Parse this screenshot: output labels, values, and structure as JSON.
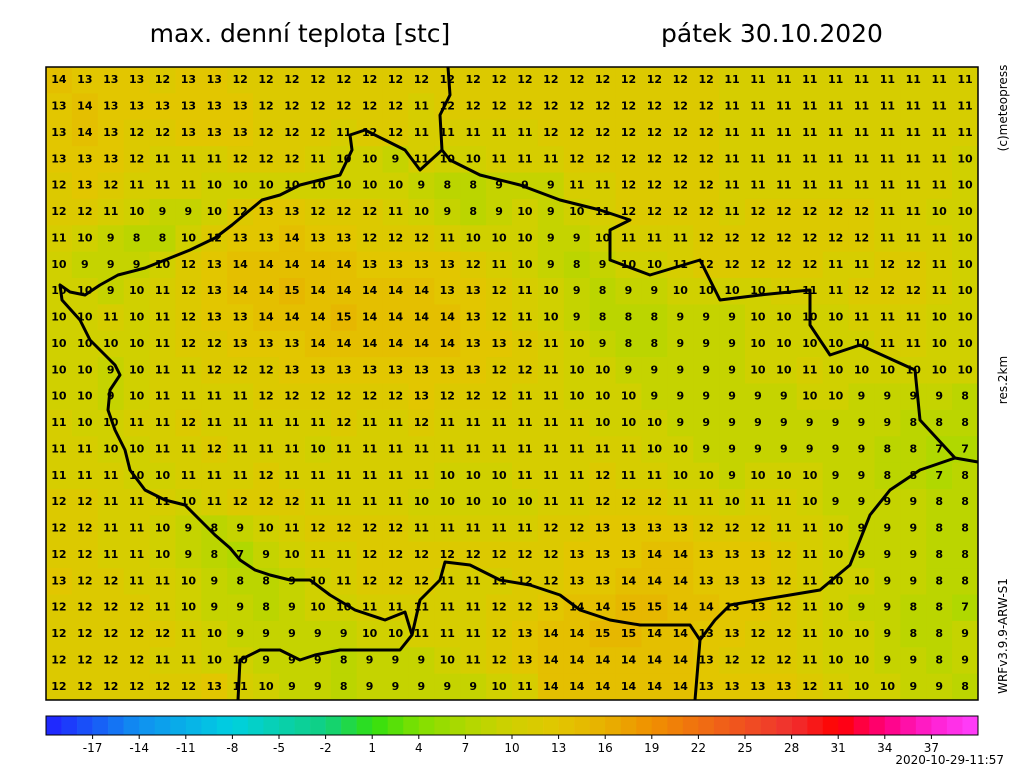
{
  "title_left": "max. denní teplota [stc]",
  "title_right": "pátek 30.10.2020",
  "credit": "(c)meteopress",
  "resolution": "res.2km",
  "model": "WRFv3.9.9-ARW-S1",
  "timestamp": "2020-10-29-11:57",
  "map": {
    "rows": [
      [
        14,
        13,
        13,
        13,
        12,
        13,
        13,
        12,
        12,
        12,
        12,
        12,
        12,
        12,
        12,
        12,
        12,
        12,
        12,
        12,
        12,
        12,
        12,
        12,
        12,
        12,
        11,
        11,
        11,
        11,
        11,
        11,
        11,
        11,
        11,
        11
      ],
      [
        13,
        14,
        13,
        13,
        13,
        13,
        13,
        13,
        12,
        12,
        12,
        12,
        12,
        12,
        11,
        12,
        12,
        12,
        12,
        12,
        12,
        12,
        12,
        12,
        12,
        12,
        11,
        11,
        11,
        11,
        11,
        11,
        11,
        11,
        11,
        11
      ],
      [
        13,
        14,
        13,
        12,
        12,
        13,
        13,
        13,
        12,
        12,
        12,
        11,
        12,
        12,
        11,
        11,
        11,
        11,
        11,
        12,
        12,
        12,
        12,
        12,
        12,
        12,
        11,
        11,
        11,
        11,
        11,
        11,
        11,
        11,
        11,
        11
      ],
      [
        13,
        13,
        13,
        12,
        11,
        11,
        11,
        12,
        12,
        12,
        11,
        10,
        10,
        9,
        11,
        10,
        10,
        11,
        11,
        11,
        12,
        12,
        12,
        12,
        12,
        12,
        11,
        11,
        11,
        11,
        11,
        11,
        11,
        11,
        11,
        10
      ],
      [
        12,
        13,
        12,
        11,
        11,
        11,
        10,
        10,
        10,
        10,
        10,
        10,
        10,
        10,
        9,
        8,
        8,
        9,
        9,
        9,
        11,
        11,
        12,
        12,
        12,
        12,
        11,
        11,
        11,
        11,
        11,
        11,
        11,
        11,
        11,
        10
      ],
      [
        12,
        12,
        11,
        10,
        9,
        9,
        10,
        12,
        13,
        13,
        12,
        12,
        12,
        11,
        10,
        9,
        8,
        9,
        10,
        9,
        10,
        11,
        12,
        12,
        12,
        12,
        11,
        12,
        12,
        12,
        12,
        12,
        11,
        11,
        10,
        10
      ],
      [
        11,
        10,
        9,
        8,
        8,
        10,
        12,
        13,
        13,
        14,
        13,
        13,
        12,
        12,
        12,
        11,
        10,
        10,
        10,
        9,
        9,
        10,
        11,
        11,
        11,
        12,
        12,
        12,
        12,
        12,
        12,
        12,
        11,
        11,
        11,
        10
      ],
      [
        10,
        9,
        9,
        9,
        10,
        12,
        13,
        14,
        14,
        14,
        14,
        14,
        13,
        13,
        13,
        13,
        12,
        11,
        10,
        9,
        8,
        9,
        10,
        10,
        11,
        12,
        12,
        12,
        12,
        12,
        11,
        11,
        12,
        12,
        11,
        10
      ],
      [
        10,
        10,
        9,
        10,
        11,
        12,
        13,
        14,
        14,
        15,
        14,
        14,
        14,
        14,
        14,
        13,
        13,
        12,
        11,
        10,
        9,
        8,
        9,
        9,
        10,
        10,
        10,
        10,
        11,
        11,
        11,
        12,
        12,
        12,
        11,
        10
      ],
      [
        10,
        10,
        11,
        10,
        11,
        12,
        13,
        13,
        14,
        14,
        14,
        15,
        14,
        14,
        14,
        14,
        13,
        12,
        11,
        10,
        9,
        8,
        8,
        8,
        9,
        9,
        9,
        10,
        10,
        10,
        10,
        11,
        11,
        11,
        10,
        10
      ],
      [
        10,
        10,
        10,
        10,
        11,
        12,
        12,
        13,
        13,
        13,
        14,
        14,
        14,
        14,
        14,
        14,
        13,
        13,
        12,
        11,
        10,
        9,
        8,
        8,
        9,
        9,
        9,
        10,
        10,
        10,
        10,
        10,
        11,
        11,
        10,
        10
      ],
      [
        10,
        10,
        9,
        10,
        11,
        11,
        12,
        12,
        12,
        13,
        13,
        13,
        13,
        13,
        13,
        13,
        13,
        12,
        12,
        11,
        10,
        10,
        9,
        9,
        9,
        9,
        9,
        10,
        10,
        11,
        10,
        10,
        10,
        10,
        10,
        10
      ],
      [
        10,
        10,
        9,
        10,
        11,
        11,
        11,
        11,
        12,
        12,
        12,
        12,
        12,
        12,
        13,
        12,
        12,
        12,
        11,
        11,
        10,
        10,
        10,
        9,
        9,
        9,
        9,
        9,
        9,
        10,
        10,
        9,
        9,
        9,
        9,
        8
      ],
      [
        11,
        10,
        10,
        11,
        11,
        12,
        11,
        11,
        11,
        11,
        11,
        12,
        11,
        11,
        12,
        11,
        11,
        11,
        11,
        11,
        11,
        10,
        10,
        10,
        9,
        9,
        9,
        9,
        9,
        9,
        9,
        9,
        9,
        8,
        8,
        8
      ],
      [
        11,
        11,
        10,
        10,
        11,
        11,
        12,
        11,
        11,
        11,
        10,
        11,
        11,
        11,
        11,
        11,
        11,
        11,
        11,
        11,
        11,
        11,
        11,
        10,
        10,
        9,
        9,
        9,
        9,
        9,
        9,
        9,
        8,
        8,
        7,
        7
      ],
      [
        11,
        11,
        11,
        10,
        10,
        11,
        11,
        11,
        12,
        11,
        11,
        11,
        11,
        11,
        11,
        10,
        10,
        10,
        11,
        11,
        11,
        12,
        11,
        11,
        10,
        10,
        9,
        10,
        10,
        10,
        9,
        9,
        8,
        8,
        7,
        8
      ],
      [
        12,
        12,
        11,
        11,
        11,
        10,
        11,
        12,
        12,
        12,
        11,
        11,
        11,
        11,
        10,
        10,
        10,
        10,
        10,
        11,
        11,
        12,
        12,
        12,
        11,
        11,
        10,
        11,
        11,
        10,
        9,
        9,
        9,
        9,
        8,
        8
      ],
      [
        12,
        12,
        11,
        11,
        10,
        9,
        8,
        9,
        10,
        11,
        12,
        12,
        12,
        12,
        11,
        11,
        11,
        11,
        11,
        12,
        12,
        13,
        13,
        13,
        13,
        12,
        12,
        12,
        11,
        11,
        10,
        9,
        9,
        9,
        8,
        8
      ],
      [
        12,
        12,
        11,
        11,
        10,
        9,
        8,
        7,
        9,
        10,
        11,
        11,
        12,
        12,
        12,
        12,
        12,
        12,
        12,
        12,
        13,
        13,
        13,
        14,
        14,
        13,
        13,
        13,
        12,
        11,
        10,
        9,
        9,
        9,
        8,
        8
      ],
      [
        13,
        12,
        12,
        11,
        11,
        10,
        9,
        8,
        8,
        9,
        10,
        11,
        12,
        12,
        12,
        11,
        11,
        11,
        12,
        12,
        13,
        13,
        14,
        14,
        14,
        13,
        13,
        13,
        12,
        11,
        10,
        10,
        9,
        9,
        8,
        8
      ],
      [
        12,
        12,
        12,
        12,
        11,
        10,
        9,
        9,
        8,
        9,
        10,
        10,
        11,
        11,
        11,
        11,
        11,
        12,
        12,
        13,
        14,
        14,
        15,
        15,
        14,
        14,
        13,
        13,
        12,
        11,
        10,
        9,
        9,
        8,
        8,
        7
      ],
      [
        12,
        12,
        12,
        12,
        12,
        11,
        10,
        9,
        9,
        9,
        9,
        9,
        10,
        10,
        11,
        11,
        11,
        12,
        13,
        14,
        14,
        15,
        15,
        14,
        14,
        13,
        13,
        12,
        12,
        11,
        10,
        10,
        9,
        8,
        8,
        9
      ],
      [
        12,
        12,
        12,
        12,
        11,
        11,
        10,
        10,
        9,
        9,
        9,
        8,
        9,
        9,
        9,
        10,
        11,
        12,
        13,
        14,
        14,
        14,
        14,
        14,
        14,
        13,
        12,
        12,
        12,
        11,
        10,
        10,
        9,
        9,
        8,
        9
      ],
      [
        12,
        12,
        12,
        12,
        12,
        12,
        13,
        11,
        10,
        9,
        9,
        8,
        9,
        9,
        9,
        9,
        9,
        10,
        11,
        14,
        14,
        14,
        14,
        14,
        14,
        13,
        13,
        13,
        13,
        12,
        11,
        10,
        10,
        9,
        9,
        8
      ]
    ],
    "colorbar": {
      "lim": [
        -20,
        40
      ],
      "ticks": [
        -17,
        -14,
        -11,
        -8,
        -5,
        -2,
        1,
        4,
        7,
        10,
        13,
        16,
        19,
        22,
        25,
        28,
        31,
        34,
        37
      ],
      "stops": [
        [
          -20,
          "#2020ff"
        ],
        [
          -14,
          "#1090f0"
        ],
        [
          -8,
          "#00d0e0"
        ],
        [
          -2,
          "#10d080"
        ],
        [
          1,
          "#30e010"
        ],
        [
          4,
          "#80e000"
        ],
        [
          7,
          "#b0d800"
        ],
        [
          10,
          "#d0d000"
        ],
        [
          13,
          "#e2c600"
        ],
        [
          16,
          "#e8b000"
        ],
        [
          19,
          "#f09000"
        ],
        [
          22,
          "#f07010"
        ],
        [
          25,
          "#f05020"
        ],
        [
          28,
          "#f03030"
        ],
        [
          31,
          "#ff0000"
        ],
        [
          34,
          "#ff0080"
        ],
        [
          37,
          "#ff20d0"
        ],
        [
          40,
          "#ff40ff"
        ]
      ]
    }
  }
}
